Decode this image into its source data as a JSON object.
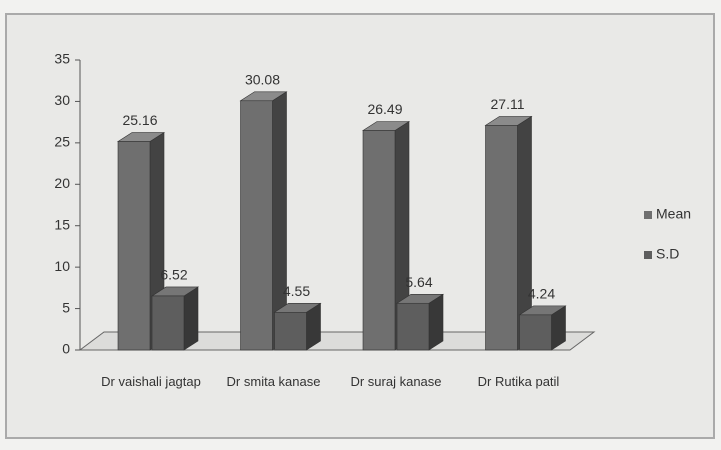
{
  "chart_data": {
    "type": "bar3d",
    "categories": [
      "Dr vaishali jagtap",
      "Dr smita kanase",
      "Dr suraj kanase",
      "Dr Rutika patil"
    ],
    "series": [
      {
        "name": "Mean",
        "color": "#6f6f6f",
        "values": [
          25.16,
          30.08,
          26.49,
          27.11
        ]
      },
      {
        "name": "S.D",
        "color": "#5e5e5e",
        "values": [
          6.52,
          4.55,
          5.64,
          4.24
        ]
      }
    ],
    "ylim": [
      0,
      35
    ],
    "yticks": [
      0,
      5,
      10,
      15,
      20,
      25,
      30,
      35
    ],
    "legend": "right"
  }
}
